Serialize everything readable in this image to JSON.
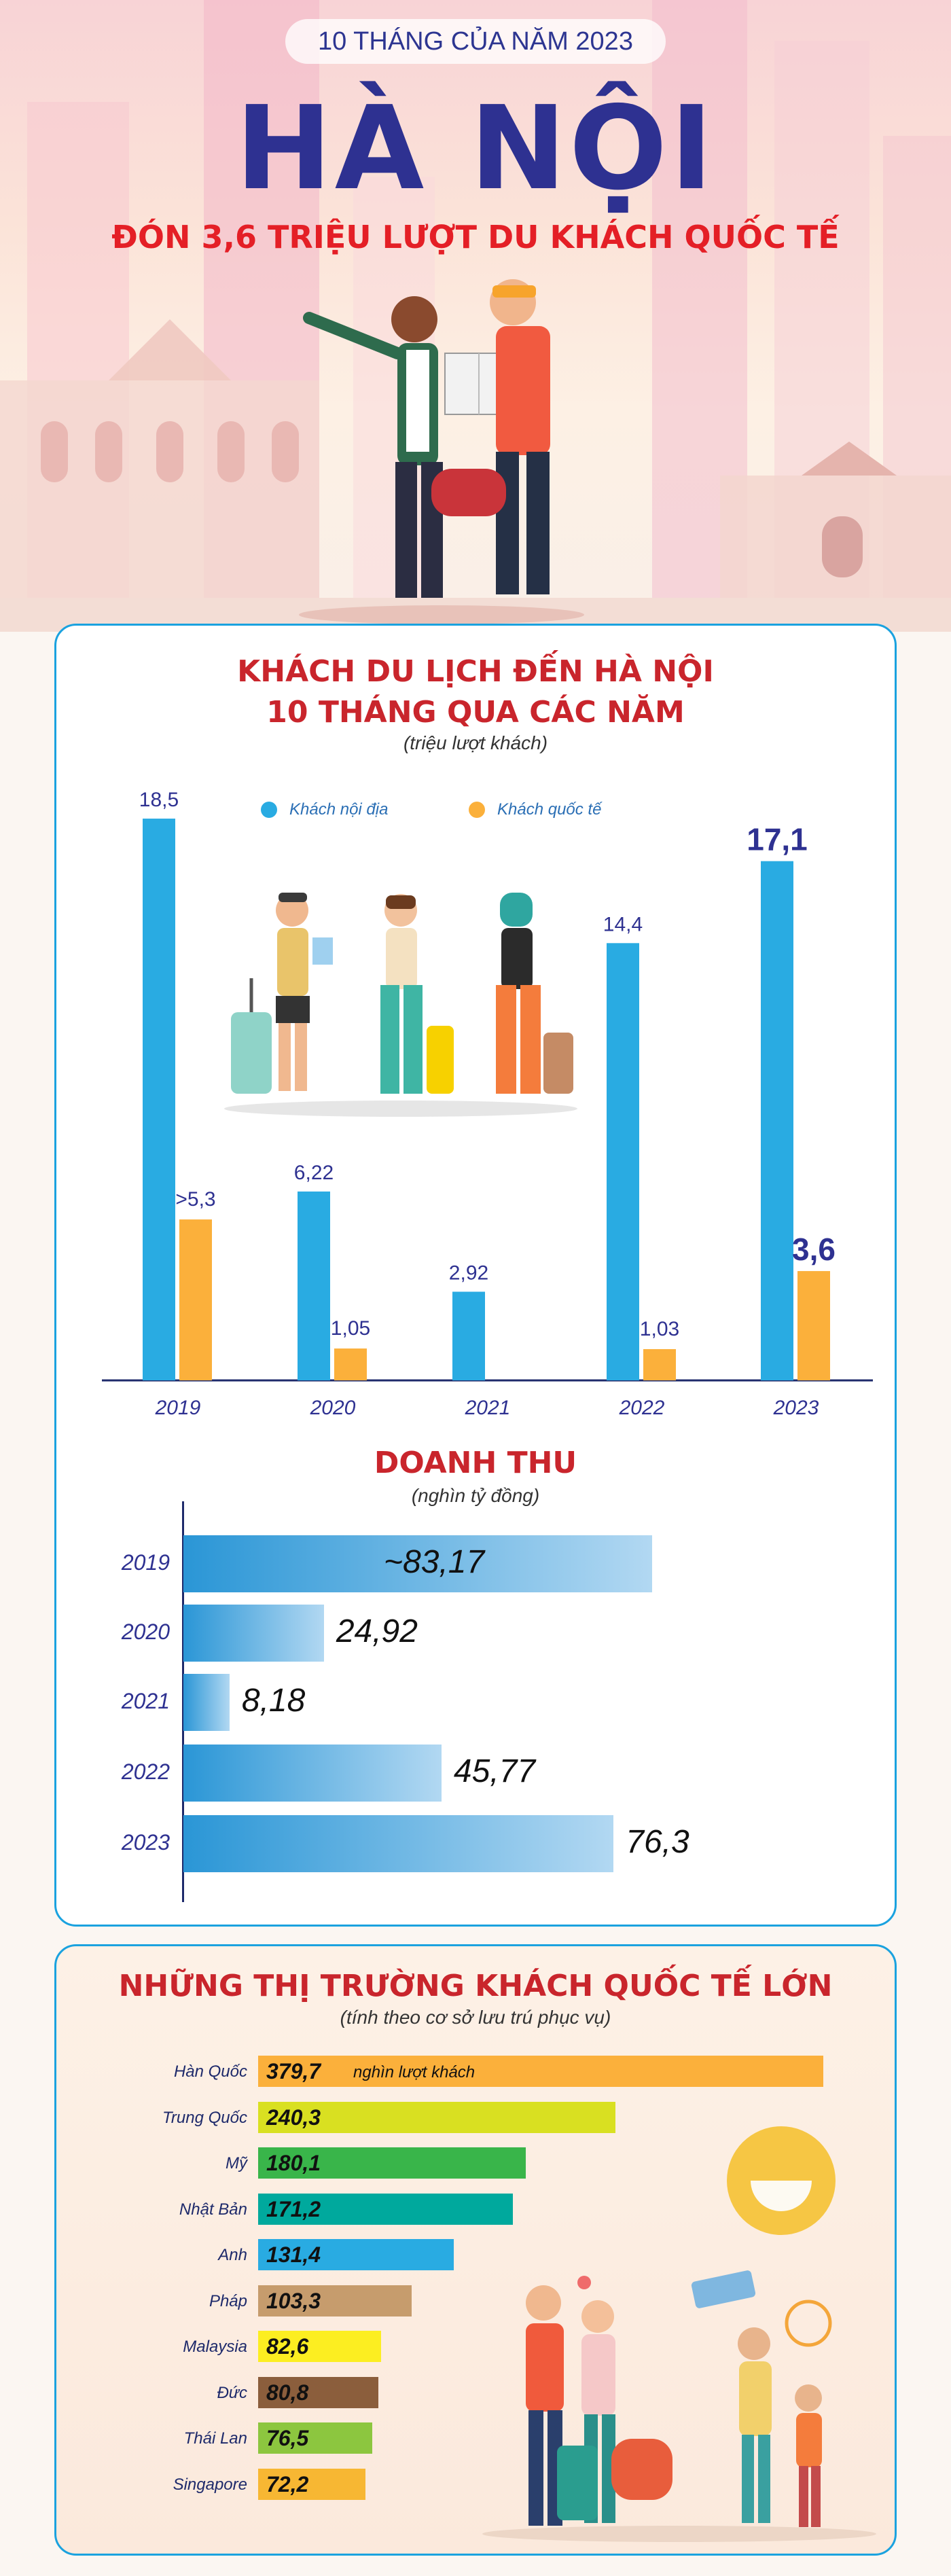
{
  "header": {
    "kicker": "10 THÁNG CỦA NĂM 2023",
    "title": "HÀ NỘI",
    "subtitle": "ĐÓN 3,6 TRIỆU LƯỢT DU KHÁCH QUỐC TẾ"
  },
  "visitors_section": {
    "title_line1": "KHÁCH DU LỊCH ĐẾN HÀ NỘI",
    "title_line2": "10 THÁNG QUA CÁC NĂM",
    "unit": "(triệu lượt khách)",
    "legend_domestic": "Khách nội địa",
    "legend_international": "Khách quốc tế"
  },
  "revenue_section": {
    "title": "DOANH THU",
    "unit": "(nghìn tỷ đồng)"
  },
  "markets_section": {
    "title": "NHỮNG THỊ TRƯỜNG KHÁCH QUỐC TẾ LỚN",
    "note": "(tính theo cơ sở lưu trú phục vụ)",
    "unit": "nghìn lượt khách"
  },
  "colors": {
    "domestic": "#29abe2",
    "international": "#fbb03b",
    "title_blue": "#2e3191",
    "title_red": "#c9252c"
  },
  "chart_data": [
    {
      "type": "bar",
      "title": "KHÁCH DU LỊCH ĐẾN HÀ NỘI 10 THÁNG QUA CÁC NĂM",
      "ylabel": "(triệu lượt khách)",
      "categories": [
        "2019",
        "2020",
        "2021",
        "2022",
        "2023"
      ],
      "ylim": [
        0,
        20
      ],
      "series": [
        {
          "name": "Khách nội địa",
          "values": [
            18.5,
            6.22,
            2.92,
            14.4,
            17.1
          ],
          "labels": [
            "18,5",
            "6,22",
            "2,92",
            "14,4",
            "17,1"
          ]
        },
        {
          "name": "Khách quốc tế",
          "values": [
            5.3,
            1.05,
            null,
            1.03,
            3.6
          ],
          "labels": [
            ">5,3",
            "1,05",
            "",
            "1,03",
            "3,6"
          ]
        }
      ]
    },
    {
      "type": "bar",
      "orientation": "horizontal",
      "title": "DOANH THU",
      "xlabel": "(nghìn tỷ đồng)",
      "categories": [
        "2019",
        "2020",
        "2021",
        "2022",
        "2023"
      ],
      "values": [
        83.17,
        24.92,
        8.18,
        45.77,
        76.3
      ],
      "labels": [
        "~83,17",
        "24,92",
        "8,18",
        "45,77",
        "76,3"
      ]
    },
    {
      "type": "bar",
      "orientation": "horizontal",
      "title": "NHỮNG THỊ TRƯỜNG KHÁCH QUỐC TẾ LỚN",
      "categories": [
        "Hàn Quốc",
        "Trung Quốc",
        "Mỹ",
        "Nhật Bản",
        "Anh",
        "Pháp",
        "Malaysia",
        "Đức",
        "Thái Lan",
        "Singapore"
      ],
      "values": [
        379.7,
        240.3,
        180.1,
        171.2,
        131.4,
        103.3,
        82.6,
        80.8,
        76.5,
        72.2
      ],
      "labels": [
        "379,7",
        "240,3",
        "180,1",
        "171,2",
        "131,4",
        "103,3",
        "82,6",
        "80,8",
        "76,5",
        "72,2"
      ],
      "colors": [
        "#fbb03b",
        "#d9e021",
        "#39b54a",
        "#00a99d",
        "#29abe2",
        "#c69c6d",
        "#fcee21",
        "#8b5e3c",
        "#8cc63f",
        "#f7b733"
      ]
    }
  ]
}
